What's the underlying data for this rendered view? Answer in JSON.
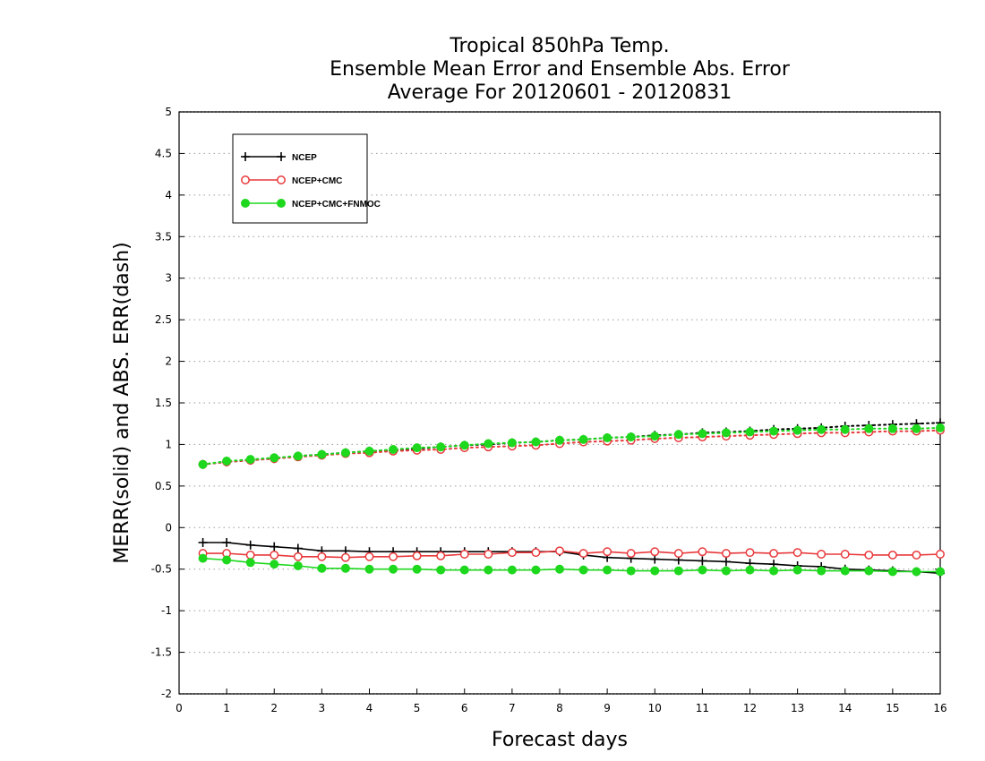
{
  "chart_data": {
    "type": "line",
    "title_lines": [
      "Tropical 850hPa Temp.",
      "Ensemble Mean Error and Ensemble Abs. Error",
      "Average For 20120601 - 20120831"
    ],
    "xlabel": "Forecast days",
    "ylabel": "MERR(solid) and ABS. ERR(dash)",
    "xlim": [
      0,
      16
    ],
    "ylim": [
      -2,
      5
    ],
    "x_ticks": [
      0,
      1,
      2,
      3,
      4,
      5,
      6,
      7,
      8,
      9,
      10,
      11,
      12,
      13,
      14,
      15,
      16
    ],
    "y_ticks": [
      -2,
      -1.5,
      -1,
      -0.5,
      0,
      0.5,
      1,
      1.5,
      2,
      2.5,
      3,
      3.5,
      4,
      4.5,
      5
    ],
    "y_tick_labels": [
      "-2",
      "-1.5",
      "-1",
      "-0.5",
      "0",
      "0.5",
      "1",
      "1.5",
      "2",
      "2.5",
      "3",
      "3.5",
      "4",
      "4.5",
      "5"
    ],
    "grid": "horizontal dotted",
    "legend_position": "top-left",
    "x": [
      0.5,
      1,
      1.5,
      2,
      2.5,
      3,
      3.5,
      4,
      4.5,
      5,
      5.5,
      6,
      6.5,
      7,
      7.5,
      8,
      8.5,
      9,
      9.5,
      10,
      10.5,
      11,
      11.5,
      12,
      12.5,
      13,
      13.5,
      14,
      14.5,
      15,
      15.5,
      16
    ],
    "series": [
      {
        "name": "NCEP",
        "color": "#000000",
        "marker": "plus",
        "mean_error": [
          -0.18,
          -0.18,
          -0.21,
          -0.23,
          -0.25,
          -0.28,
          -0.28,
          -0.29,
          -0.29,
          -0.29,
          -0.29,
          -0.29,
          -0.29,
          -0.29,
          -0.29,
          -0.29,
          -0.33,
          -0.36,
          -0.37,
          -0.38,
          -0.39,
          -0.4,
          -0.41,
          -0.43,
          -0.44,
          -0.46,
          -0.47,
          -0.5,
          -0.51,
          -0.52,
          -0.53,
          -0.55
        ],
        "abs_error": [
          0.76,
          0.79,
          0.81,
          0.83,
          0.86,
          0.88,
          0.9,
          0.92,
          0.93,
          0.95,
          0.97,
          0.99,
          1.0,
          1.02,
          1.03,
          1.05,
          1.06,
          1.08,
          1.09,
          1.11,
          1.12,
          1.14,
          1.15,
          1.16,
          1.18,
          1.19,
          1.2,
          1.22,
          1.23,
          1.24,
          1.25,
          1.26
        ]
      },
      {
        "name": "NCEP+CMC",
        "color": "#e8383b",
        "marker": "open-circle",
        "mean_error": [
          -0.31,
          -0.31,
          -0.33,
          -0.33,
          -0.35,
          -0.35,
          -0.36,
          -0.35,
          -0.35,
          -0.34,
          -0.34,
          -0.32,
          -0.32,
          -0.3,
          -0.3,
          -0.28,
          -0.31,
          -0.29,
          -0.31,
          -0.29,
          -0.31,
          -0.29,
          -0.31,
          -0.3,
          -0.31,
          -0.3,
          -0.32,
          -0.32,
          -0.33,
          -0.33,
          -0.33,
          -0.32
        ],
        "abs_error": [
          0.76,
          0.79,
          0.81,
          0.83,
          0.85,
          0.87,
          0.89,
          0.9,
          0.92,
          0.93,
          0.94,
          0.96,
          0.97,
          0.98,
          0.99,
          1.01,
          1.03,
          1.04,
          1.05,
          1.07,
          1.08,
          1.09,
          1.1,
          1.11,
          1.12,
          1.13,
          1.14,
          1.14,
          1.15,
          1.16,
          1.16,
          1.17
        ]
      },
      {
        "name": "NCEP+CMC+FNMOC",
        "color": "#1ed81e",
        "marker": "filled-circle",
        "mean_error": [
          -0.37,
          -0.39,
          -0.42,
          -0.44,
          -0.46,
          -0.49,
          -0.49,
          -0.5,
          -0.5,
          -0.5,
          -0.51,
          -0.51,
          -0.51,
          -0.51,
          -0.51,
          -0.5,
          -0.51,
          -0.51,
          -0.52,
          -0.52,
          -0.52,
          -0.51,
          -0.52,
          -0.51,
          -0.52,
          -0.51,
          -0.52,
          -0.52,
          -0.52,
          -0.53,
          -0.53,
          -0.53
        ],
        "abs_error": [
          0.76,
          0.8,
          0.82,
          0.84,
          0.86,
          0.88,
          0.9,
          0.92,
          0.94,
          0.96,
          0.97,
          0.99,
          1.01,
          1.02,
          1.03,
          1.05,
          1.06,
          1.08,
          1.09,
          1.1,
          1.12,
          1.13,
          1.14,
          1.15,
          1.16,
          1.17,
          1.18,
          1.18,
          1.19,
          1.19,
          1.19,
          1.2
        ]
      }
    ]
  }
}
